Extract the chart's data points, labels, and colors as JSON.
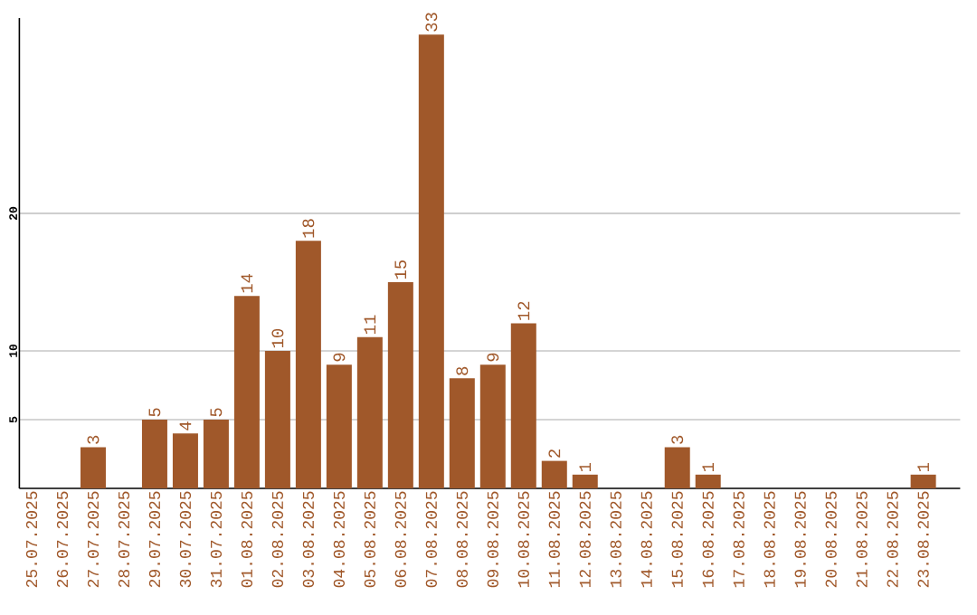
{
  "chart_data": {
    "type": "bar",
    "categories": [
      "25.07.2025",
      "26.07.2025",
      "27.07.2025",
      "28.07.2025",
      "29.07.2025",
      "30.07.2025",
      "31.07.2025",
      "01.08.2025",
      "02.08.2025",
      "03.08.2025",
      "04.08.2025",
      "05.08.2025",
      "06.08.2025",
      "07.08.2025",
      "08.08.2025",
      "09.08.2025",
      "10.08.2025",
      "11.08.2025",
      "12.08.2025",
      "13.08.2025",
      "14.08.2025",
      "15.08.2025",
      "16.08.2025",
      "17.08.2025",
      "18.08.2025",
      "19.08.2025",
      "20.08.2025",
      "21.08.2025",
      "22.08.2025",
      "23.08.2025"
    ],
    "values": [
      null,
      null,
      3,
      null,
      5,
      4,
      5,
      14,
      10,
      18,
      9,
      11,
      15,
      33,
      8,
      9,
      12,
      2,
      1,
      null,
      null,
      3,
      1,
      null,
      null,
      null,
      null,
      null,
      null,
      1
    ],
    "color": "#a0582a",
    "ylim": [
      0,
      34.2
    ],
    "yticks": [
      5,
      10,
      20
    ],
    "grid": "y",
    "data_labels": true
  }
}
